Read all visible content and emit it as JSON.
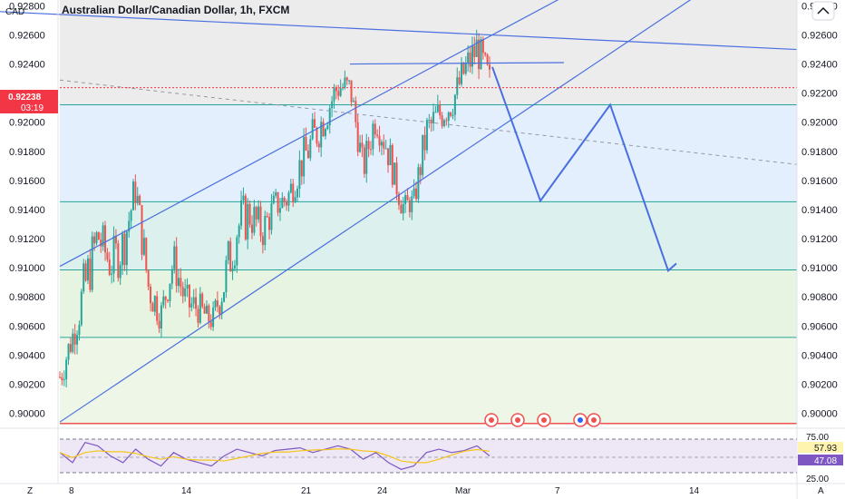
{
  "header": {
    "title": "Australian Dollar/Canadian Dollar, 1h, FXCM",
    "currency": "CAD",
    "collapse_icon": "chevron-up-icon"
  },
  "price_badge": {
    "price": "0.92238",
    "countdown": "03:19",
    "color": "#f23645"
  },
  "colors": {
    "up": "#26a69a",
    "down": "#ef5350",
    "trend": "#4a6fe0",
    "zone_grey": "#ececec",
    "zone_blue": "#e3effc",
    "zone_teal": "#dcf0ee",
    "zone_green": "#e6f4e1",
    "zone_light_green": "#eef7e7",
    "rsi_line": "#7e57c2",
    "rsi_ma": "#f5c518",
    "rsi_band": "#ede7f6"
  },
  "x_axis": {
    "labels": [
      "8",
      "14",
      "21",
      "24",
      "Mar",
      "7",
      "14"
    ],
    "bottom_left": "Z",
    "bottom_right": "A"
  },
  "rsi": {
    "levels": [
      "75.00",
      "25.00"
    ],
    "value1": "57.93",
    "value2": "47.08",
    "value1_color": "#f5c518",
    "value2_color": "#7e57c2"
  },
  "chart_data": {
    "type": "candlestick",
    "title": "Australian Dollar/Canadian Dollar, 1h, FXCM",
    "ylim": [
      0.8991,
      0.9284
    ],
    "y_ticks": [
      0.9,
      0.902,
      0.904,
      0.906,
      0.908,
      0.91,
      0.912,
      0.914,
      0.916,
      0.918,
      0.92,
      0.922,
      0.924,
      0.926,
      0.928
    ],
    "y_tick_labels": [
      "0.90000",
      "0.90200",
      "0.90400",
      "0.90600",
      "0.90800",
      "0.91000",
      "0.91200",
      "0.91400",
      "0.91600",
      "0.91800",
      "0.92000",
      "0.92200",
      "0.92400",
      "0.92600",
      "0.92800"
    ],
    "last_price": 0.92238,
    "zone_levels": [
      0.9212,
      0.91454,
      0.90985,
      0.90522,
      0.8993
    ],
    "price_path": [
      [
        0.9035,
        0.9015
      ],
      [
        0.906,
        0.9045
      ],
      [
        0.9105,
        0.907
      ],
      [
        0.9135,
        0.911
      ],
      [
        0.9115,
        0.909
      ],
      [
        0.913,
        0.91
      ],
      [
        0.9165,
        0.9145
      ],
      [
        0.91,
        0.9075
      ],
      [
        0.9075,
        0.906
      ],
      [
        0.9115,
        0.9095
      ],
      [
        0.9085,
        0.9065
      ],
      [
        0.908,
        0.9065
      ],
      [
        0.9065,
        0.906
      ],
      [
        0.9105,
        0.9075
      ],
      [
        0.9145,
        0.911
      ],
      [
        0.915,
        0.9125
      ],
      [
        0.9135,
        0.9115
      ],
      [
        0.915,
        0.9135
      ],
      [
        0.9155,
        0.914
      ],
      [
        0.918,
        0.916
      ],
      [
        0.92,
        0.9175
      ],
      [
        0.9215,
        0.9195
      ],
      [
        0.9235,
        0.9215
      ],
      [
        0.923,
        0.9215
      ],
      [
        0.9175,
        0.916
      ],
      [
        0.9215,
        0.9195
      ],
      [
        0.919,
        0.917
      ],
      [
        0.9145,
        0.914
      ],
      [
        0.915,
        0.914
      ],
      [
        0.9205,
        0.918
      ],
      [
        0.9215,
        0.9195
      ],
      [
        0.922,
        0.9205
      ],
      [
        0.9245,
        0.9225
      ],
      [
        0.9262,
        0.924
      ],
      [
        0.9235,
        0.9225
      ]
    ],
    "trend_lines": [
      [
        [
          0,
          0.9276
        ],
        [
          879,
          0.925
        ]
      ],
      [
        [
          386,
          0.924
        ],
        [
          622,
          0.9241
        ]
      ],
      [
        [
          66,
          0.9101
        ],
        [
          618,
          0.9285
        ]
      ],
      [
        [
          66,
          0.8994
        ],
        [
          766,
          0.9286
        ]
      ]
    ],
    "dashed_line": [
      [
        66,
        0.9229
      ],
      [
        879,
        0.9171
      ]
    ],
    "projection": [
      [
        543,
        0.9238
      ],
      [
        596,
        0.9146
      ],
      [
        673,
        0.9212
      ],
      [
        737,
        0.9098
      ],
      [
        746,
        0.9103
      ]
    ],
    "rsi": [
      55,
      40,
      70,
      65,
      50,
      40,
      60,
      45,
      35,
      55,
      45,
      40,
      35,
      50,
      60,
      55,
      50,
      58,
      60,
      62,
      55,
      60,
      65,
      60,
      45,
      55,
      40,
      30,
      35,
      55,
      60,
      55,
      58,
      65,
      50
    ]
  }
}
